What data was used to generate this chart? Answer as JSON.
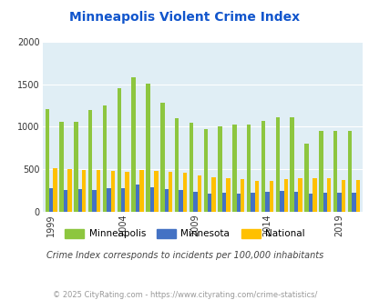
{
  "title": "Minneapolis Violent Crime Index",
  "years": [
    1999,
    2000,
    2001,
    2002,
    2003,
    2004,
    2005,
    2006,
    2007,
    2008,
    2009,
    2010,
    2011,
    2012,
    2013,
    2014,
    2015,
    2016,
    2017,
    2018,
    2019,
    2020
  ],
  "minneapolis": [
    1210,
    1055,
    1055,
    1200,
    1250,
    1460,
    1585,
    1510,
    1280,
    1100,
    1050,
    975,
    1000,
    1025,
    1025,
    1065,
    1110,
    1110,
    800,
    950,
    950,
    950
  ],
  "minnesota": [
    280,
    255,
    265,
    255,
    270,
    280,
    320,
    285,
    260,
    250,
    235,
    215,
    220,
    215,
    220,
    235,
    245,
    235,
    215,
    220,
    220,
    220
  ],
  "national": [
    510,
    505,
    495,
    495,
    475,
    465,
    485,
    475,
    465,
    455,
    430,
    400,
    390,
    385,
    365,
    365,
    385,
    395,
    390,
    390,
    370,
    370
  ],
  "colors": {
    "minneapolis": "#8DC63F",
    "minnesota": "#4472C4",
    "national": "#FFC000"
  },
  "bg_color": "#E0EEF5",
  "ylabel_ticks": [
    0,
    500,
    1000,
    1500,
    2000
  ],
  "xtick_labels": [
    "1999",
    "2004",
    "2009",
    "2014",
    "2019"
  ],
  "xtick_positions": [
    0,
    5,
    10,
    15,
    20
  ],
  "ylim": [
    0,
    2000
  ],
  "subtitle": "Crime Index corresponds to incidents per 100,000 inhabitants",
  "footer": "© 2025 CityRating.com - https://www.cityrating.com/crime-statistics/",
  "title_color": "#1155CC",
  "subtitle_color": "#444444",
  "footer_color": "#999999",
  "title_fontsize": 10,
  "subtitle_fontsize": 7,
  "footer_fontsize": 6,
  "legend_fontsize": 7.5,
  "tick_fontsize": 7
}
